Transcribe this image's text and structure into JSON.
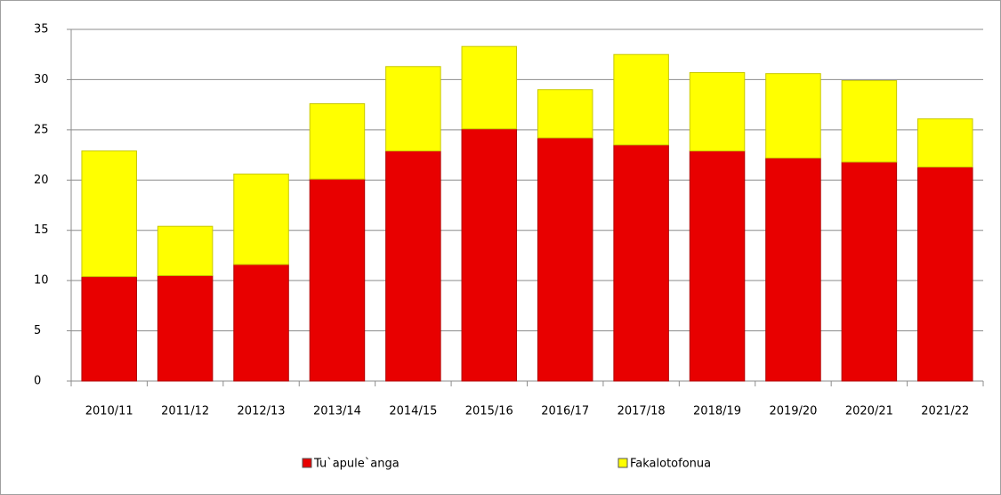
{
  "chart_data": {
    "type": "stacked_bar",
    "categories": [
      "2010/11",
      "2011/12",
      "2012/13",
      "2013/14",
      "2014/15",
      "2015/16",
      "2016/17",
      "2017/18",
      "2018/19",
      "2019/20",
      "2020/21",
      "2021/22"
    ],
    "series": [
      {
        "name": "Tu`apule`anga",
        "color": "#e80000",
        "values": [
          10.4,
          10.5,
          11.6,
          20.1,
          22.9,
          25.1,
          24.2,
          23.5,
          22.9,
          22.2,
          21.8,
          21.3
        ]
      },
      {
        "name": "Fakalotofonua",
        "color": "#ffff00",
        "values": [
          12.5,
          4.9,
          9.0,
          7.5,
          8.4,
          8.2,
          4.8,
          9.0,
          7.8,
          8.4,
          8.1,
          4.8
        ]
      }
    ],
    "ylim": [
      0,
      35
    ],
    "yticks": [
      0,
      5,
      10,
      15,
      20,
      25,
      30,
      35
    ],
    "grid": true,
    "legend": "bottom"
  }
}
